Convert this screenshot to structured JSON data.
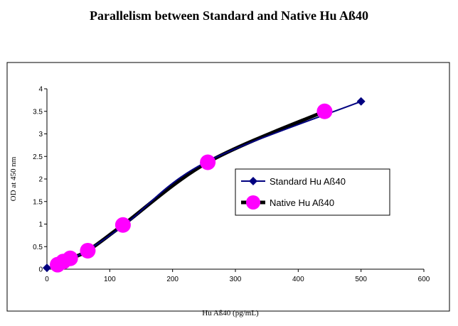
{
  "chart_data": {
    "type": "line",
    "title": "Parallelism between Standard and Native Hu Aß40",
    "xlabel": "Hu Aß40 (pg/mL)",
    "ylabel": "OD at 450 nm",
    "xlim": [
      0,
      600
    ],
    "ylim": [
      0,
      4
    ],
    "x_ticks": [
      "0",
      "100",
      "200",
      "300",
      "400",
      "500",
      "600"
    ],
    "y_ticks": [
      "0",
      "0.5",
      "1",
      "1.5",
      "2",
      "2.5",
      "3",
      "3.5",
      "4"
    ],
    "grid": false,
    "legend_position": "right",
    "series": [
      {
        "name": "Standard Hu Aß40",
        "color": "#000080",
        "marker": "diamond",
        "x": [
          0,
          15.6,
          31.3,
          62.5,
          125,
          250,
          500
        ],
        "y": [
          0.03,
          0.09,
          0.19,
          0.4,
          1.0,
          2.35,
          3.72
        ]
      },
      {
        "name": "Native Hu Aß40",
        "color": "#ff00ff",
        "line_color": "#000000",
        "marker": "circle",
        "x": [
          17,
          26,
          37,
          65,
          121,
          256,
          442
        ],
        "y": [
          0.1,
          0.17,
          0.24,
          0.41,
          0.98,
          2.37,
          3.5
        ]
      }
    ]
  }
}
